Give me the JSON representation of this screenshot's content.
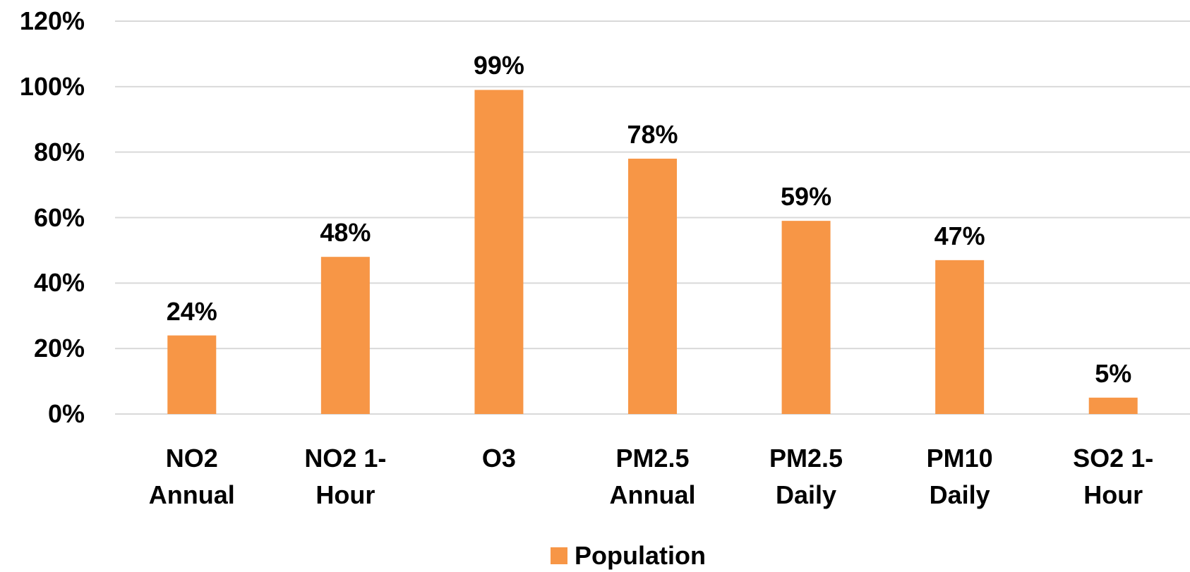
{
  "chart_data": {
    "type": "bar",
    "categories": [
      "NO2 Annual",
      "NO2 1-Hour",
      "O3",
      "PM2.5 Annual",
      "PM2.5 Daily",
      "PM10 Daily",
      "SO2 1-Hour"
    ],
    "series": [
      {
        "name": "Population",
        "color": "#f79646",
        "values": [
          24,
          48,
          99,
          78,
          59,
          47,
          5
        ],
        "value_labels": [
          "24%",
          "48%",
          "99%",
          "78%",
          "59%",
          "47%",
          "5%"
        ]
      }
    ],
    "ylim": [
      0,
      120
    ],
    "yticks": [
      {
        "value": 0,
        "label": "0%"
      },
      {
        "value": 20,
        "label": "20%"
      },
      {
        "value": 40,
        "label": "40%"
      },
      {
        "value": 60,
        "label": "60%"
      },
      {
        "value": 80,
        "label": "80%"
      },
      {
        "value": 100,
        "label": "100%"
      },
      {
        "value": 120,
        "label": "120%"
      }
    ],
    "grid": true,
    "legend": "bottom"
  }
}
